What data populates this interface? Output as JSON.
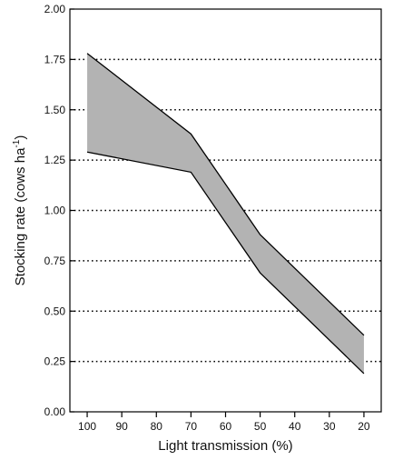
{
  "chart_data": {
    "type": "area",
    "xlabel": "Light transmission (%)",
    "ylabel_main": "Stocking rate (cows ha",
    "ylabel_sup": "-1",
    "ylabel_close": ")",
    "xlim": [
      105,
      15
    ],
    "ylim": [
      0,
      2
    ],
    "x_ticks": [
      100,
      90,
      80,
      70,
      60,
      50,
      40,
      30,
      20
    ],
    "x_tick_labels": [
      "100",
      "90",
      "80",
      "70",
      "60",
      "50",
      "40",
      "30",
      "20"
    ],
    "y_ticks": [
      0,
      0.25,
      0.5,
      0.75,
      1.0,
      1.25,
      1.5,
      1.75,
      2.0
    ],
    "y_tick_labels": [
      "0.00",
      "0.25",
      "0.50",
      "0.75",
      "1.00",
      "1.25",
      "1.50",
      "1.75",
      "2.00"
    ],
    "dotted_gridlines_y": [
      0.25,
      0.5,
      0.75,
      1.0,
      1.25,
      1.5,
      1.75
    ],
    "band": {
      "x": [
        100,
        70,
        50,
        20
      ],
      "upper": [
        1.78,
        1.38,
        0.88,
        0.38
      ],
      "lower": [
        1.29,
        1.19,
        0.69,
        0.19
      ]
    },
    "colors": {
      "band_fill": "#b3b3b3",
      "band_edge": "#000000",
      "axis": "#000000"
    }
  }
}
